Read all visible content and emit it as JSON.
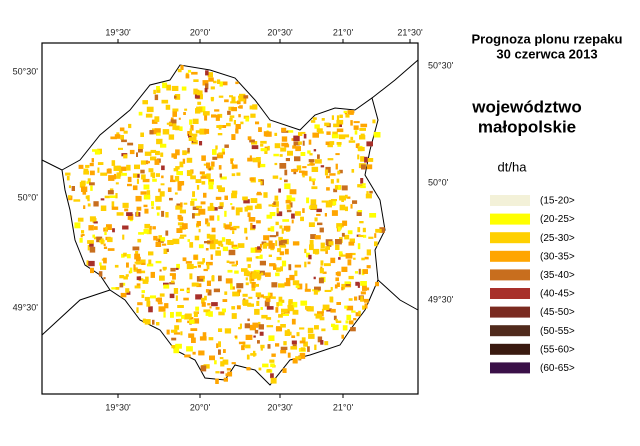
{
  "title": [
    "Prognoza plonu rzepaku",
    "30 czerwca 2013"
  ],
  "region": [
    "województwo",
    "małopolskie"
  ],
  "legend": {
    "title": "dt/ha",
    "items": [
      {
        "label": "(15-20>",
        "color": "#f3f1d8"
      },
      {
        "label": "(20-25>",
        "color": "#ffff00"
      },
      {
        "label": "(25-30>",
        "color": "#ffd000"
      },
      {
        "label": "(30-35>",
        "color": "#ffa500"
      },
      {
        "label": "(35-40>",
        "color": "#c86e1e"
      },
      {
        "label": "(40-45>",
        "color": "#a8302a"
      },
      {
        "label": "(45-50>",
        "color": "#7a2a20"
      },
      {
        "label": "(50-55>",
        "color": "#502a1c"
      },
      {
        "label": "(55-60>",
        "color": "#3a1a10"
      },
      {
        "label": "(60-65>",
        "color": "#3a1048"
      }
    ]
  },
  "axes": {
    "top": [
      "19°30'",
      "20°0'",
      "20°30'",
      "21°0'",
      "21°30'"
    ],
    "bottom": [
      "19°30'",
      "20°0'",
      "20°30'",
      "21°0'"
    ],
    "left": [
      "50°30'",
      "50°0'",
      "49°30'"
    ],
    "right": [
      "50°30'",
      "50°0'",
      "49°30'"
    ]
  }
}
